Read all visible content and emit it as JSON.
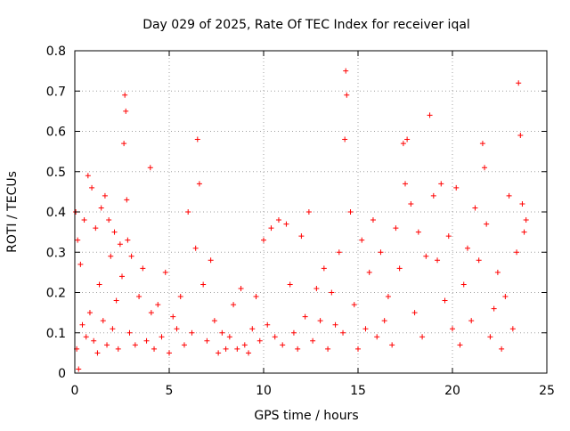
{
  "chart_data": {
    "type": "scatter",
    "title": "Day 029 of 2025, Rate Of TEC Index for receiver iqal",
    "xlabel": "GPS time / hours",
    "ylabel": "ROTI / TECUs",
    "xlim": [
      0,
      25
    ],
    "ylim": [
      0,
      0.8
    ],
    "xticks": [
      0,
      5,
      10,
      15,
      20,
      25
    ],
    "yticks": [
      0,
      0.1,
      0.2,
      0.3,
      0.4,
      0.5,
      0.6,
      0.7,
      0.8
    ],
    "xtick_labels": [
      "0",
      "5",
      "10",
      "15",
      "20",
      "25"
    ],
    "ytick_labels": [
      "0",
      "0.1",
      "0.2",
      "0.3",
      "0.4",
      "0.5",
      "0.6",
      "0.7",
      "0.8"
    ],
    "grid": true,
    "marker": "plus",
    "color": "#ff0000",
    "series": [
      {
        "x": [
          0.05,
          0.1,
          0.15,
          0.2,
          0.3,
          0.4,
          0.5,
          0.6,
          0.7,
          0.8,
          0.9,
          1.0,
          1.1,
          1.2,
          1.3,
          1.4,
          1.5,
          1.6,
          1.7,
          1.8,
          1.9,
          2.0,
          2.1,
          2.2,
          2.3,
          2.4,
          2.5,
          2.6,
          2.65,
          2.7,
          2.75,
          2.8,
          2.9,
          3.0,
          3.2,
          3.4,
          3.6,
          3.8,
          4.0,
          4.05,
          4.2,
          4.4,
          4.6,
          4.8,
          5.0,
          5.2,
          5.4,
          5.6,
          5.8,
          6.0,
          6.2,
          6.4,
          6.5,
          6.6,
          6.8,
          7.0,
          7.2,
          7.4,
          7.6,
          7.8,
          8.0,
          8.2,
          8.4,
          8.6,
          8.8,
          9.0,
          9.2,
          9.4,
          9.6,
          9.8,
          10.0,
          10.2,
          10.4,
          10.6,
          10.8,
          11.0,
          11.2,
          11.4,
          11.6,
          11.8,
          12.0,
          12.2,
          12.4,
          12.6,
          12.8,
          13.0,
          13.2,
          13.4,
          13.6,
          13.8,
          14.0,
          14.2,
          14.3,
          14.35,
          14.4,
          14.6,
          14.8,
          15.0,
          15.2,
          15.4,
          15.6,
          15.8,
          16.0,
          16.2,
          16.4,
          16.6,
          16.8,
          17.0,
          17.2,
          17.4,
          17.5,
          17.6,
          17.8,
          18.0,
          18.2,
          18.4,
          18.6,
          18.8,
          19.0,
          19.2,
          19.4,
          19.6,
          19.8,
          20.0,
          20.2,
          20.4,
          20.6,
          20.8,
          21.0,
          21.2,
          21.4,
          21.6,
          21.7,
          21.8,
          22.0,
          22.2,
          22.4,
          22.6,
          22.8,
          23.0,
          23.2,
          23.4,
          23.5,
          23.6,
          23.7,
          23.8,
          23.9
        ],
        "y": [
          0.4,
          0.06,
          0.33,
          0.01,
          0.27,
          0.12,
          0.38,
          0.09,
          0.49,
          0.15,
          0.46,
          0.08,
          0.36,
          0.05,
          0.22,
          0.41,
          0.13,
          0.44,
          0.07,
          0.38,
          0.29,
          0.11,
          0.35,
          0.18,
          0.06,
          0.32,
          0.24,
          0.57,
          0.69,
          0.65,
          0.43,
          0.33,
          0.1,
          0.29,
          0.07,
          0.19,
          0.26,
          0.08,
          0.51,
          0.15,
          0.06,
          0.17,
          0.09,
          0.25,
          0.05,
          0.14,
          0.11,
          0.19,
          0.07,
          0.4,
          0.1,
          0.31,
          0.58,
          0.47,
          0.22,
          0.08,
          0.28,
          0.13,
          0.05,
          0.1,
          0.06,
          0.09,
          0.17,
          0.06,
          0.21,
          0.07,
          0.05,
          0.11,
          0.19,
          0.08,
          0.33,
          0.12,
          0.36,
          0.09,
          0.38,
          0.07,
          0.37,
          0.22,
          0.1,
          0.06,
          0.34,
          0.14,
          0.4,
          0.08,
          0.21,
          0.13,
          0.26,
          0.06,
          0.2,
          0.12,
          0.3,
          0.1,
          0.58,
          0.75,
          0.69,
          0.4,
          0.17,
          0.06,
          0.33,
          0.11,
          0.25,
          0.38,
          0.09,
          0.3,
          0.13,
          0.19,
          0.07,
          0.36,
          0.26,
          0.57,
          0.47,
          0.58,
          0.42,
          0.15,
          0.35,
          0.09,
          0.29,
          0.64,
          0.44,
          0.28,
          0.47,
          0.18,
          0.34,
          0.11,
          0.46,
          0.07,
          0.22,
          0.31,
          0.13,
          0.41,
          0.28,
          0.57,
          0.51,
          0.37,
          0.09,
          0.16,
          0.25,
          0.06,
          0.19,
          0.44,
          0.11,
          0.3,
          0.72,
          0.59,
          0.42,
          0.35,
          0.38
        ]
      }
    ]
  }
}
